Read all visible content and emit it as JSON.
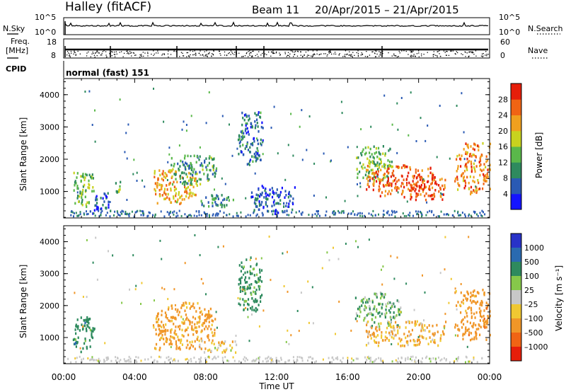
{
  "header": {
    "title": "Halley (fitACF)",
    "beam": "Beam 11",
    "date_range": "20/Apr/2015 – 21/Apr/2015"
  },
  "nsky_panel": {
    "left_label": "N.Sky",
    "right_label": "N.Search",
    "left_ticks": [
      "10^5",
      "10^0"
    ],
    "right_ticks": [
      "10^5",
      "10^0"
    ]
  },
  "freq_panel": {
    "left_label_lines": [
      "Freq.",
      "[MHz]"
    ],
    "right_label": "Nave",
    "left_ticks": [
      "18",
      "8"
    ],
    "right_ticks": [
      "60",
      "0"
    ]
  },
  "cpid": {
    "label": "CPID",
    "value": "normal (fast) 151"
  },
  "x_axis": {
    "label": "Time UT",
    "ticks": [
      "00:00",
      "04:00",
      "08:00",
      "12:00",
      "16:00",
      "20:00",
      "00:00"
    ],
    "range_hours": [
      0,
      24
    ]
  },
  "y_axis": {
    "label": "Slant Range [km]",
    "ticks": [
      "1000",
      "2000",
      "3000",
      "4000"
    ],
    "range_km": [
      180,
      4500
    ]
  },
  "power_colorbar": {
    "label": "Power [dB]",
    "ticks": [
      "4",
      "8",
      "12",
      "16",
      "20",
      "24",
      "28"
    ],
    "colors": [
      "#1414ff",
      "#2a5ab4",
      "#2e8a5e",
      "#5ab84a",
      "#c8d21e",
      "#f0a01e",
      "#f06414",
      "#e61e0a"
    ]
  },
  "velocity_colorbar": {
    "label": "Velocity [m s⁻¹]",
    "ticks": [
      "1000",
      "500",
      "100",
      "25",
      "–25",
      "–100",
      "–500",
      "–1000"
    ],
    "colors": [
      "#2832c8",
      "#2a6ab0",
      "#2e8a5e",
      "#86c84a",
      "#c8c8c8",
      "#f0c832",
      "#f09628",
      "#f06414",
      "#e61e0a"
    ]
  },
  "chart_data": [
    {
      "type": "heatmap",
      "name": "power",
      "units": "dB",
      "x_units": "hours UT since 20/Apr/2015 00:00",
      "y_units": "km",
      "regions": [
        {
          "t": [
            0.5,
            1.7
          ],
          "r": [
            500,
            1700
          ],
          "value": 14
        },
        {
          "t": [
            1.6,
            2.6
          ],
          "r": [
            250,
            1000
          ],
          "value": 6
        },
        {
          "t": [
            2.9,
            3.3
          ],
          "r": [
            900,
            1300
          ],
          "value": 14
        },
        {
          "t": [
            5.0,
            7.6
          ],
          "r": [
            600,
            1700
          ],
          "value": 22
        },
        {
          "t": [
            6.0,
            8.6
          ],
          "r": [
            1200,
            2100
          ],
          "value": 12
        },
        {
          "t": [
            7.6,
            9.8
          ],
          "r": [
            500,
            900
          ],
          "value": 10
        },
        {
          "t": [
            9.8,
            11.2
          ],
          "r": [
            1800,
            3500
          ],
          "value": 8
        },
        {
          "t": [
            10.5,
            13.0
          ],
          "r": [
            300,
            1200
          ],
          "value": 6
        },
        {
          "t": [
            16.4,
            18.5
          ],
          "r": [
            1300,
            2400
          ],
          "value": 14
        },
        {
          "t": [
            17.0,
            21.0
          ],
          "r": [
            800,
            1800
          ],
          "value": 26
        },
        {
          "t": [
            19.5,
            21.5
          ],
          "r": [
            700,
            1500
          ],
          "value": 28
        },
        {
          "t": [
            22.0,
            24.0
          ],
          "r": [
            900,
            2500
          ],
          "value": 24
        }
      ]
    },
    {
      "type": "heatmap",
      "name": "velocity",
      "units": "m s^-1",
      "x_units": "hours UT since 20/Apr/2015 00:00",
      "y_units": "km",
      "regions": [
        {
          "t": [
            0.5,
            1.7
          ],
          "r": [
            500,
            1700
          ],
          "value": 300
        },
        {
          "t": [
            5.0,
            8.6
          ],
          "r": [
            600,
            2100
          ],
          "value": -200
        },
        {
          "t": [
            7.6,
            9.8
          ],
          "r": [
            500,
            900
          ],
          "value": -60
        },
        {
          "t": [
            9.8,
            11.2
          ],
          "r": [
            1800,
            3500
          ],
          "value": 200
        },
        {
          "t": [
            16.4,
            19.0
          ],
          "r": [
            1300,
            2400
          ],
          "value": 80
        },
        {
          "t": [
            17.0,
            21.5
          ],
          "r": [
            700,
            1500
          ],
          "value": -100
        },
        {
          "t": [
            22.0,
            24.0
          ],
          "r": [
            900,
            2500
          ],
          "value": -300
        }
      ]
    }
  ]
}
